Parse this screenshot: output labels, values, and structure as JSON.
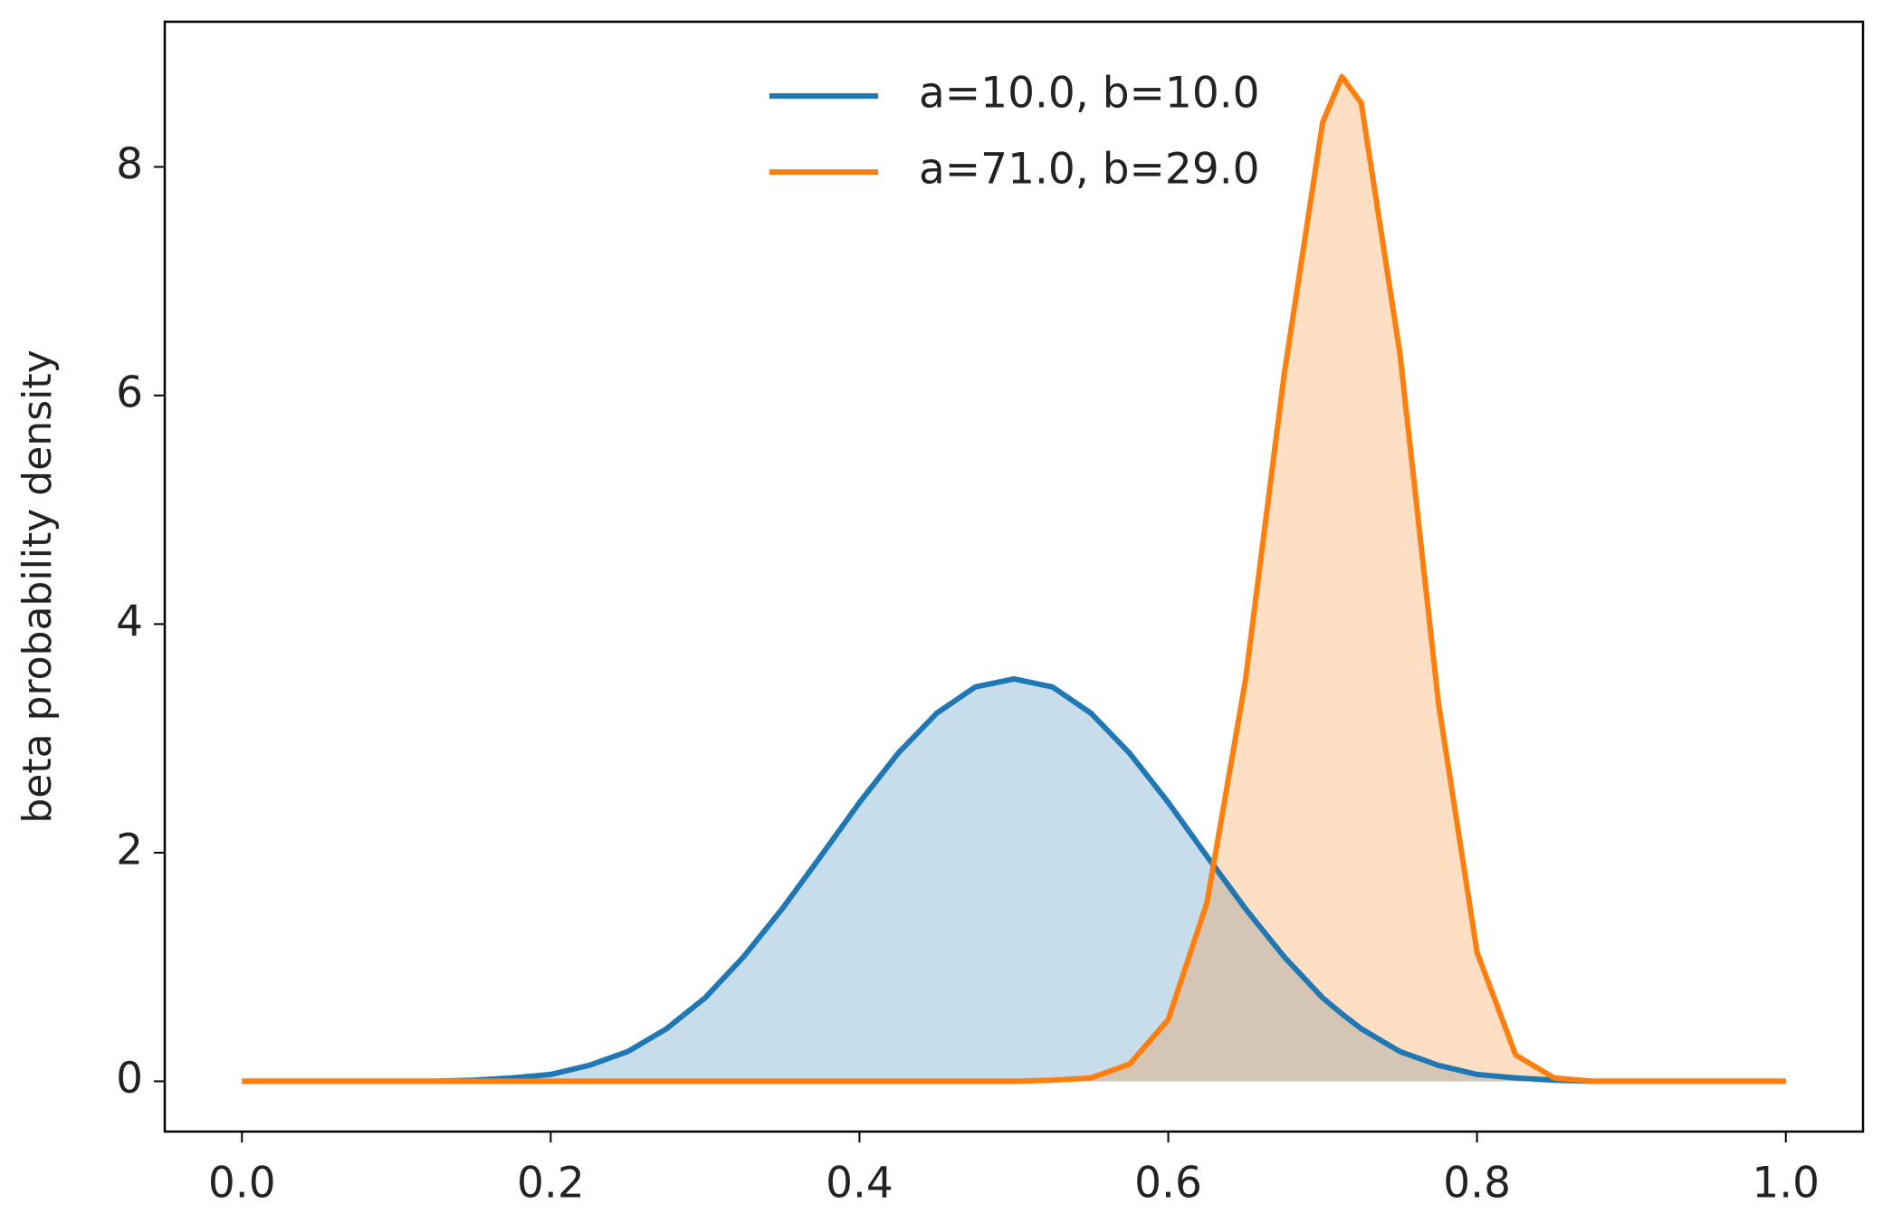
{
  "chart_data": {
    "type": "line",
    "fill": true,
    "y_label": "beta probability density",
    "x": [
      0,
      0.025,
      0.05,
      0.075,
      0.1,
      0.125,
      0.15,
      0.175,
      0.2,
      0.225,
      0.25,
      0.275,
      0.3,
      0.325,
      0.35,
      0.375,
      0.4,
      0.425,
      0.45,
      0.475,
      0.5,
      0.525,
      0.55,
      0.575,
      0.6,
      0.625,
      0.65,
      0.675,
      0.7,
      0.7125,
      0.725,
      0.75,
      0.775,
      0.8,
      0.825,
      0.85,
      0.875,
      0.9,
      0.925,
      0.95,
      0.975,
      1.0
    ],
    "series": [
      {
        "name": "a=10.0, b=10.0",
        "color": "#1f77b4",
        "values": [
          0,
          0,
          0,
          0,
          0,
          0,
          0.01,
          0.03,
          0.06,
          0.14,
          0.26,
          0.46,
          0.73,
          1.09,
          1.51,
          1.97,
          2.44,
          2.87,
          3.22,
          3.45,
          3.52,
          3.45,
          3.22,
          2.87,
          2.44,
          1.97,
          1.51,
          1.09,
          0.73,
          0.59,
          0.46,
          0.26,
          0.14,
          0.06,
          0.03,
          0.01,
          0,
          0,
          0,
          0,
          0,
          0
        ]
      },
      {
        "name": "a=71.0, b=29.0",
        "color": "#ff7f0e",
        "values": [
          0,
          0,
          0,
          0,
          0,
          0,
          0,
          0,
          0,
          0,
          0,
          0,
          0,
          0,
          0,
          0,
          0,
          0,
          0,
          0,
          0,
          0.01,
          0.03,
          0.15,
          0.54,
          1.56,
          3.51,
          6.18,
          8.39,
          8.79,
          8.56,
          6.37,
          3.31,
          1.13,
          0.23,
          0.03,
          0,
          0,
          0,
          0,
          0,
          0
        ]
      }
    ],
    "xlim": [
      -0.05,
      1.05
    ],
    "ylim": [
      -0.44,
      9.27
    ],
    "xticks": [
      {
        "value": 0,
        "label": "0.0"
      },
      0.2,
      0.4,
      0.6,
      0.8,
      {
        "value": 1,
        "label": "1.0"
      }
    ],
    "yticks": [
      0,
      2,
      4,
      6,
      8
    ],
    "legend": "upper center"
  }
}
